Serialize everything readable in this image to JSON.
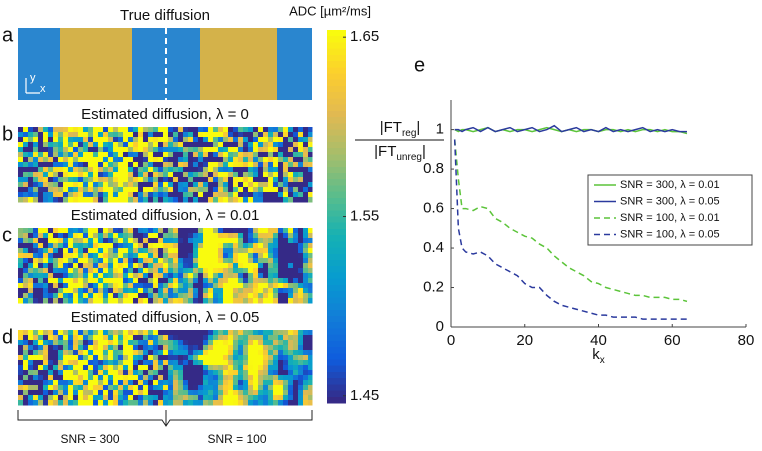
{
  "chart_data": [
    {
      "type": "image",
      "panels": [
        {
          "label": "a",
          "title": "True diffusion"
        },
        {
          "label": "b",
          "title": "Estimated diffusion, λ = 0"
        },
        {
          "label": "c",
          "title": "Estimated diffusion, λ = 0.01"
        },
        {
          "label": "d",
          "title": "Estimated diffusion, λ = 0.05"
        }
      ],
      "axis_labels": [
        "y",
        "x"
      ],
      "colorbar": {
        "label": "ADC [µm²/ms]",
        "lim": [
          1.446,
          1.654
        ],
        "ticks": [
          1.45,
          1.55,
          1.65
        ]
      },
      "groups": [
        "SNR = 300",
        "SNR = 100"
      ]
    },
    {
      "type": "line",
      "panel_label": "e",
      "xlabel": {
        "text": "k",
        "sub": "x"
      },
      "ylabel": {
        "numerator": {
          "text": "|FT",
          "sub": "reg",
          "end": "|"
        },
        "denominator": {
          "text": "|FT",
          "sub": "unreg",
          "end": "|"
        }
      },
      "x": [
        1,
        2,
        3,
        4,
        6,
        8,
        10,
        12,
        14,
        16,
        18,
        20,
        22,
        24,
        26,
        28,
        30,
        32,
        34,
        36,
        38,
        40,
        42,
        44,
        46,
        48,
        50,
        52,
        54,
        56,
        58,
        60,
        62,
        64
      ],
      "series": [
        {
          "name": "SNR = 300, λ = 0.01",
          "color": "#5cc43a",
          "dashed": false,
          "values": [
            1,
            0.99,
            1,
            1,
            0.99,
            1,
            1.01,
            0.99,
            1,
            0.99,
            1,
            1,
            0.99,
            1,
            1.01,
            1,
            0.99,
            1,
            0.99,
            1,
            1,
            0.99,
            1,
            1,
            0.99,
            1,
            0.99,
            1,
            1,
            0.99,
            1,
            0.99,
            0.99,
            0.98
          ]
        },
        {
          "name": "SNR = 300, λ = 0.05",
          "color": "#2b3a9e",
          "dashed": false,
          "values": [
            1,
            1,
            0.99,
            1,
            1.01,
            0.99,
            1.01,
            0.99,
            1,
            1.01,
            0.99,
            1,
            1.01,
            0.99,
            1,
            1.02,
            0.99,
            1,
            1.01,
            0.99,
            1,
            0.99,
            1.01,
            0.99,
            1,
            0.99,
            1,
            1.01,
            0.99,
            1,
            0.99,
            1,
            0.99,
            0.99
          ]
        },
        {
          "name": "SNR = 100, λ = 0.01",
          "color": "#5cc43a",
          "dashed": true,
          "values": [
            0.95,
            0.75,
            0.6,
            0.6,
            0.59,
            0.61,
            0.6,
            0.55,
            0.53,
            0.5,
            0.48,
            0.46,
            0.45,
            0.42,
            0.4,
            0.36,
            0.33,
            0.3,
            0.28,
            0.26,
            0.23,
            0.22,
            0.2,
            0.19,
            0.18,
            0.17,
            0.16,
            0.16,
            0.15,
            0.15,
            0.15,
            0.14,
            0.14,
            0.13
          ]
        },
        {
          "name": "SNR = 100, λ = 0.05",
          "color": "#2b3a9e",
          "dashed": true,
          "values": [
            0.95,
            0.5,
            0.4,
            0.38,
            0.37,
            0.38,
            0.36,
            0.32,
            0.3,
            0.28,
            0.26,
            0.22,
            0.2,
            0.2,
            0.16,
            0.13,
            0.11,
            0.1,
            0.09,
            0.08,
            0.07,
            0.06,
            0.06,
            0.05,
            0.05,
            0.05,
            0.05,
            0.04,
            0.04,
            0.04,
            0.04,
            0.04,
            0.04,
            0.04
          ]
        }
      ],
      "xlim": [
        0,
        80
      ],
      "xticks": [
        0,
        20,
        40,
        60,
        80
      ],
      "ylim": [
        0,
        1.15
      ],
      "yticks": [
        0,
        0.2,
        0.4,
        0.6,
        0.8,
        1
      ],
      "legend": "right"
    }
  ]
}
